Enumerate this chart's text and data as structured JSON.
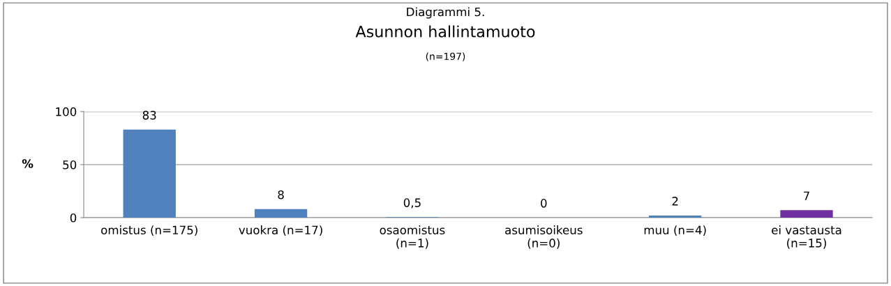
{
  "chart_data": {
    "type": "bar",
    "title": "Asunnon hallintamuoto",
    "subtitle": "(n=197)",
    "annotations": [
      "Diagrammi 5."
    ],
    "ylabel": "%",
    "categories": [
      "omistus (n=175)",
      "vuokra (n=17)",
      "osaomistus\n(n=1)",
      "asumisoikeus\n(n=0)",
      "muu (n=4)",
      "ei vastausta\n(n=15)"
    ],
    "values": [
      83,
      8,
      0.5,
      0,
      2,
      7
    ],
    "colors": [
      "#4f81bd",
      "#4f81bd",
      "#4f81bd",
      "#4f81bd",
      "#4f81bd",
      "#7030a0"
    ],
    "value_labels": [
      "83",
      "8",
      "0,5",
      "0",
      "2",
      "7"
    ],
    "ylim": [
      0,
      100
    ],
    "yticks": [
      0,
      50,
      100
    ],
    "grid": "y",
    "legend": false
  }
}
